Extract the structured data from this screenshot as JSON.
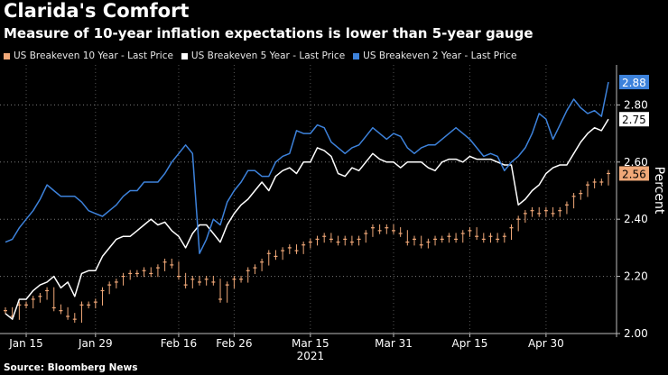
{
  "title": "Clarida's Comfort",
  "subtitle": "Measure of 10-year inflation expectations is lower than 5-year gauge",
  "source": "Source: Bloomberg News",
  "chart_data": {
    "type": "line",
    "ylabel": "Percent",
    "ylim": [
      2.0,
      2.94
    ],
    "yticks": [
      2.0,
      2.2,
      2.4,
      2.6,
      2.8
    ],
    "ytick_labels": [
      "2.00",
      "2.20",
      "2.40",
      "2.60",
      "2.80"
    ],
    "xticks": [
      {
        "label": "Jan 15",
        "x": 3
      },
      {
        "label": "Jan 29",
        "x": 13
      },
      {
        "label": "Feb 16",
        "x": 25
      },
      {
        "label": "Feb 26",
        "x": 33
      },
      {
        "label": "Mar 15",
        "x": 44
      },
      {
        "label": "Mar 31",
        "x": 56
      },
      {
        "label": "Apr 15",
        "x": 67
      },
      {
        "label": "Apr 30",
        "x": 78
      }
    ],
    "year_label": "2021",
    "series": [
      {
        "name": "US Breakeven 10 Year - Last Price",
        "color": "#f0a878",
        "kind": "candlestick",
        "last_value": "2.56",
        "values": [
          2.08,
          2.06,
          2.1,
          2.1,
          2.12,
          2.13,
          2.15,
          2.09,
          2.08,
          2.06,
          2.05,
          2.1,
          2.1,
          2.11,
          2.15,
          2.17,
          2.18,
          2.2,
          2.21,
          2.21,
          2.22,
          2.21,
          2.23,
          2.25,
          2.24,
          2.2,
          2.17,
          2.19,
          2.18,
          2.19,
          2.18,
          2.12,
          2.17,
          2.19,
          2.19,
          2.22,
          2.23,
          2.25,
          2.28,
          2.27,
          2.29,
          2.3,
          2.29,
          2.31,
          2.32,
          2.33,
          2.34,
          2.33,
          2.32,
          2.33,
          2.32,
          2.33,
          2.35,
          2.37,
          2.36,
          2.37,
          2.36,
          2.35,
          2.32,
          2.33,
          2.31,
          2.32,
          2.33,
          2.33,
          2.34,
          2.33,
          2.35,
          2.36,
          2.34,
          2.33,
          2.34,
          2.33,
          2.34,
          2.37,
          2.4,
          2.42,
          2.43,
          2.42,
          2.43,
          2.42,
          2.43,
          2.45,
          2.48,
          2.49,
          2.52,
          2.53,
          2.53,
          2.56
        ]
      },
      {
        "name": "US Breakeven 5 Year - Last Price",
        "color": "#ffffff",
        "kind": "line",
        "last_value": "2.75",
        "values": [
          2.07,
          2.05,
          2.12,
          2.12,
          2.15,
          2.17,
          2.18,
          2.2,
          2.16,
          2.18,
          2.13,
          2.21,
          2.22,
          2.22,
          2.27,
          2.3,
          2.33,
          2.34,
          2.34,
          2.36,
          2.38,
          2.4,
          2.38,
          2.39,
          2.36,
          2.34,
          2.3,
          2.35,
          2.38,
          2.38,
          2.35,
          2.32,
          2.38,
          2.42,
          2.45,
          2.47,
          2.5,
          2.53,
          2.5,
          2.55,
          2.57,
          2.58,
          2.56,
          2.6,
          2.6,
          2.65,
          2.64,
          2.62,
          2.56,
          2.55,
          2.58,
          2.57,
          2.6,
          2.63,
          2.61,
          2.6,
          2.6,
          2.58,
          2.6,
          2.6,
          2.6,
          2.58,
          2.57,
          2.6,
          2.61,
          2.61,
          2.6,
          2.62,
          2.61,
          2.61,
          2.61,
          2.6,
          2.59,
          2.59,
          2.45,
          2.47,
          2.5,
          2.52,
          2.56,
          2.58,
          2.59,
          2.59,
          2.63,
          2.67,
          2.7,
          2.72,
          2.71,
          2.75
        ]
      },
      {
        "name": "US Breakeven 2 Year - Last Price",
        "color": "#3d82db",
        "kind": "line",
        "last_value": "2.88",
        "values": [
          2.32,
          2.33,
          2.37,
          2.4,
          2.43,
          2.47,
          2.52,
          2.5,
          2.48,
          2.48,
          2.48,
          2.46,
          2.43,
          2.42,
          2.41,
          2.43,
          2.45,
          2.48,
          2.5,
          2.5,
          2.53,
          2.53,
          2.53,
          2.56,
          2.6,
          2.63,
          2.66,
          2.63,
          2.28,
          2.33,
          2.4,
          2.38,
          2.46,
          2.5,
          2.53,
          2.57,
          2.57,
          2.55,
          2.55,
          2.6,
          2.62,
          2.63,
          2.71,
          2.7,
          2.7,
          2.73,
          2.72,
          2.67,
          2.65,
          2.63,
          2.65,
          2.66,
          2.69,
          2.72,
          2.7,
          2.68,
          2.7,
          2.69,
          2.65,
          2.63,
          2.65,
          2.66,
          2.66,
          2.68,
          2.7,
          2.72,
          2.7,
          2.68,
          2.65,
          2.62,
          2.63,
          2.62,
          2.57,
          2.6,
          2.62,
          2.65,
          2.7,
          2.77,
          2.75,
          2.68,
          2.73,
          2.78,
          2.82,
          2.79,
          2.77,
          2.78,
          2.76,
          2.88
        ]
      }
    ]
  }
}
